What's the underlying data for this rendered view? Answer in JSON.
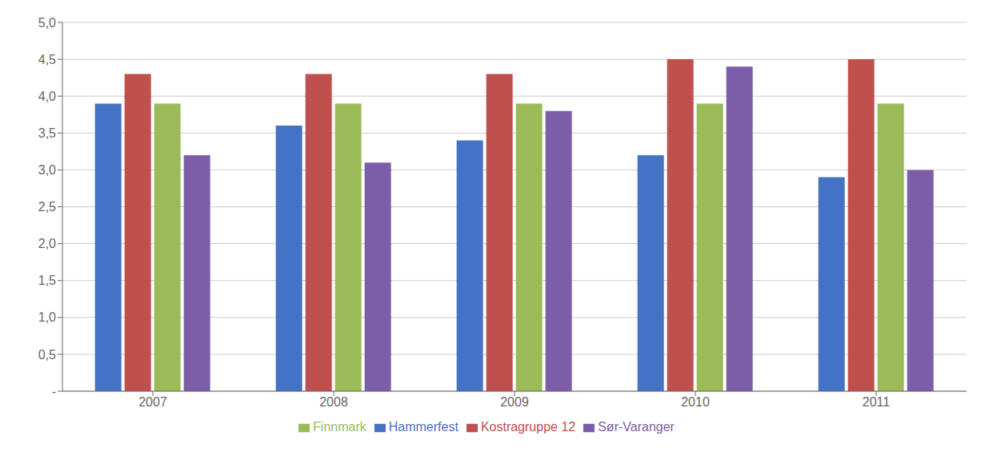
{
  "chart_data": {
    "type": "bar",
    "categories": [
      "2007",
      "2008",
      "2009",
      "2010",
      "2011"
    ],
    "series": [
      {
        "name": "Hammerfest",
        "color": "#4472C4",
        "values": [
          3.9,
          3.6,
          3.4,
          3.2,
          2.9
        ]
      },
      {
        "name": "Kostragruppe 12",
        "color": "#C0504D",
        "values": [
          4.3,
          4.3,
          4.3,
          4.5,
          4.5
        ]
      },
      {
        "name": "Finnmark",
        "color": "#9BBB59",
        "values": [
          3.9,
          3.9,
          3.9,
          3.9,
          3.9
        ]
      },
      {
        "name": "Sør-Varanger",
        "color": "#7B5EA7",
        "values": [
          3.2,
          3.1,
          3.8,
          4.4,
          3.0
        ]
      }
    ],
    "ylim": [
      0,
      5.0
    ],
    "yticks": [
      {
        "value": 0.0,
        "label": "-"
      },
      {
        "value": 0.5,
        "label": "0,5"
      },
      {
        "value": 1.0,
        "label": "1,0"
      },
      {
        "value": 1.5,
        "label": "1,5"
      },
      {
        "value": 2.0,
        "label": "2,0"
      },
      {
        "value": 2.5,
        "label": "2,5"
      },
      {
        "value": 3.0,
        "label": "3,0"
      },
      {
        "value": 3.5,
        "label": "3,5"
      },
      {
        "value": 4.0,
        "label": "4,0"
      },
      {
        "value": 4.5,
        "label": "4,5"
      },
      {
        "value": 5.0,
        "label": "5,0"
      }
    ],
    "grid": true,
    "legend": "bottom"
  }
}
